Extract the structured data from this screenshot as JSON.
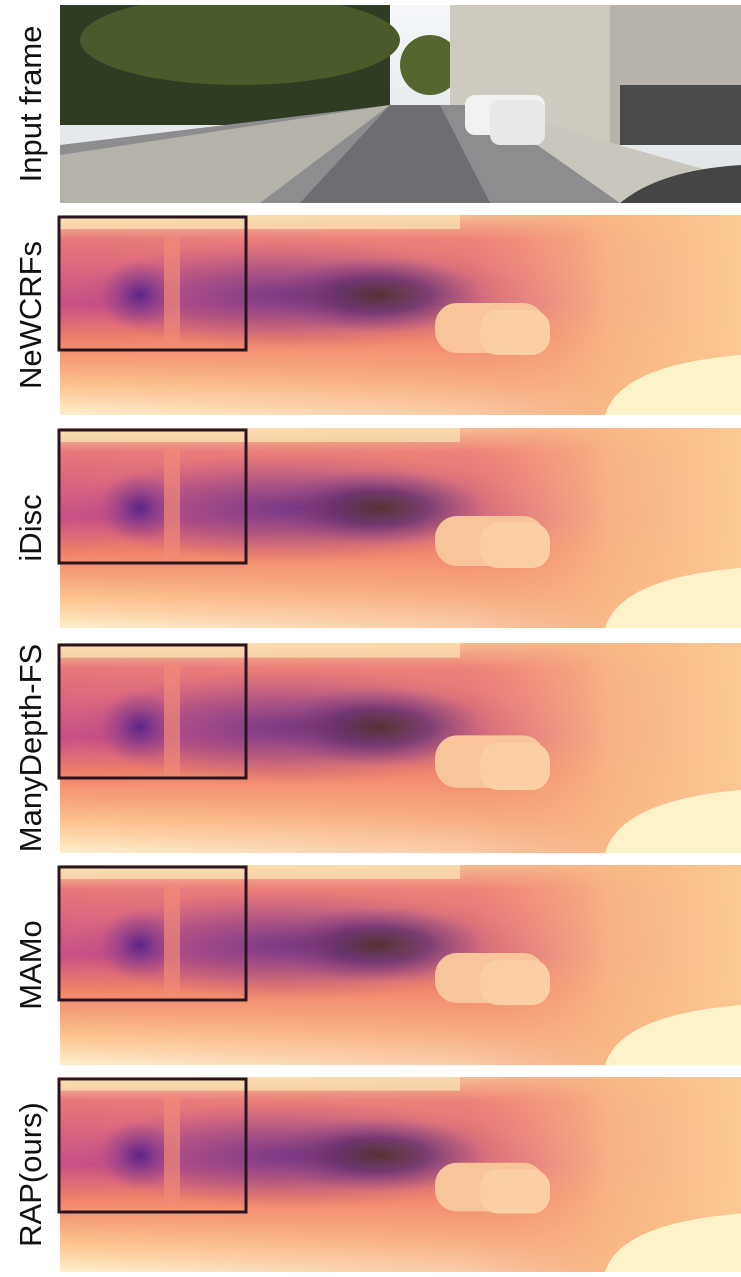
{
  "panels": [
    {
      "label": "Input frame"
    },
    {
      "label": "NeWCRFs"
    },
    {
      "label": "iDisc"
    },
    {
      "label": "ManyDepth-FS"
    },
    {
      "label": "MAMo"
    },
    {
      "label": "RAP(ours)"
    }
  ]
}
